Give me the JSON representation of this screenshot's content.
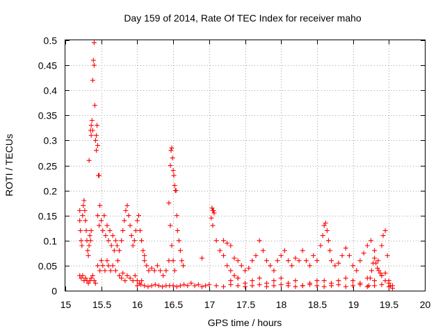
{
  "chart_data": {
    "type": "scatter",
    "title": "Day 159 of 2014, Rate Of TEC Index for receiver maho",
    "xlabel": "GPS time / hours",
    "ylabel": "ROTI / TECUs",
    "xlim": [
      15,
      20
    ],
    "ylim": [
      0,
      0.5
    ],
    "xticks": [
      15,
      15.5,
      16,
      16.5,
      17,
      17.5,
      18,
      18.5,
      19,
      19.5,
      20
    ],
    "xtick_labels": [
      "15",
      "15.5",
      "16",
      "16.5",
      "17",
      "17.5",
      "18",
      "18.5",
      "19",
      "19.5",
      "20"
    ],
    "yticks": [
      0,
      0.05,
      0.1,
      0.15,
      0.2,
      0.25,
      0.3,
      0.35,
      0.4,
      0.45,
      0.5
    ],
    "ytick_labels": [
      "0",
      "0.05",
      "0.1",
      "0.15",
      "0.2",
      "0.25",
      "0.3",
      "0.35",
      "0.4",
      "0.45",
      "0.5"
    ],
    "grid": true,
    "marker": "+",
    "color": "#ff0000",
    "series": [
      {
        "name": "ROTI",
        "points": [
          [
            15.2,
            0.16
          ],
          [
            15.2,
            0.14
          ],
          [
            15.21,
            0.12
          ],
          [
            15.22,
            0.1
          ],
          [
            15.23,
            0.09
          ],
          [
            15.24,
            0.15
          ],
          [
            15.25,
            0.17
          ],
          [
            15.26,
            0.18
          ],
          [
            15.27,
            0.16
          ],
          [
            15.28,
            0.14
          ],
          [
            15.29,
            0.12
          ],
          [
            15.3,
            0.1
          ],
          [
            15.31,
            0.08
          ],
          [
            15.32,
            0.07
          ],
          [
            15.33,
            0.09
          ],
          [
            15.34,
            0.11
          ],
          [
            15.35,
            0.1
          ],
          [
            15.36,
            0.12
          ],
          [
            15.2,
            0.03
          ],
          [
            15.22,
            0.025
          ],
          [
            15.24,
            0.03
          ],
          [
            15.26,
            0.02
          ],
          [
            15.28,
            0.025
          ],
          [
            15.3,
            0.02
          ],
          [
            15.32,
            0.015
          ],
          [
            15.34,
            0.02
          ],
          [
            15.36,
            0.025
          ],
          [
            15.38,
            0.03
          ],
          [
            15.4,
            0.02
          ],
          [
            15.42,
            0.015
          ],
          [
            15.33,
            0.26
          ],
          [
            15.35,
            0.32
          ],
          [
            15.36,
            0.33
          ],
          [
            15.37,
            0.34
          ],
          [
            15.38,
            0.42
          ],
          [
            15.39,
            0.46
          ],
          [
            15.4,
            0.45
          ],
          [
            15.41,
            0.37
          ],
          [
            15.42,
            0.3
          ],
          [
            15.43,
            0.31
          ],
          [
            15.44,
            0.33
          ],
          [
            15.45,
            0.29
          ],
          [
            15.4,
            0.495
          ],
          [
            15.46,
            0.23
          ],
          [
            15.47,
            0.23
          ],
          [
            15.38,
            0.32
          ],
          [
            15.36,
            0.31
          ],
          [
            15.43,
            0.28
          ],
          [
            15.45,
            0.15
          ],
          [
            15.47,
            0.13
          ],
          [
            15.48,
            0.17
          ],
          [
            15.5,
            0.14
          ],
          [
            15.52,
            0.12
          ],
          [
            15.54,
            0.15
          ],
          [
            15.56,
            0.11
          ],
          [
            15.58,
            0.13
          ],
          [
            15.6,
            0.1
          ],
          [
            15.62,
            0.12
          ],
          [
            15.64,
            0.09
          ],
          [
            15.66,
            0.11
          ],
          [
            15.68,
            0.08
          ],
          [
            15.7,
            0.1
          ],
          [
            15.72,
            0.09
          ],
          [
            15.45,
            0.05
          ],
          [
            15.48,
            0.04
          ],
          [
            15.5,
            0.06
          ],
          [
            15.52,
            0.05
          ],
          [
            15.55,
            0.04
          ],
          [
            15.58,
            0.06
          ],
          [
            15.6,
            0.05
          ],
          [
            15.63,
            0.04
          ],
          [
            15.66,
            0.05
          ],
          [
            15.7,
            0.04
          ],
          [
            15.73,
            0.06
          ],
          [
            15.75,
            0.08
          ],
          [
            15.78,
            0.1
          ],
          [
            15.8,
            0.12
          ],
          [
            15.82,
            0.14
          ],
          [
            15.84,
            0.16
          ],
          [
            15.86,
            0.17
          ],
          [
            15.88,
            0.15
          ],
          [
            15.9,
            0.13
          ],
          [
            15.92,
            0.11
          ],
          [
            15.94,
            0.09
          ],
          [
            15.96,
            0.1
          ],
          [
            15.98,
            0.12
          ],
          [
            16.0,
            0.14
          ],
          [
            16.02,
            0.15
          ],
          [
            16.04,
            0.12
          ],
          [
            16.06,
            0.1
          ],
          [
            16.08,
            0.08
          ],
          [
            16.1,
            0.07
          ],
          [
            15.75,
            0.03
          ],
          [
            15.78,
            0.025
          ],
          [
            15.8,
            0.035
          ],
          [
            15.83,
            0.02
          ],
          [
            15.86,
            0.03
          ],
          [
            15.9,
            0.025
          ],
          [
            15.94,
            0.02
          ],
          [
            15.97,
            0.03
          ],
          [
            16.0,
            0.02
          ],
          [
            16.03,
            0.015
          ],
          [
            16.06,
            0.02
          ],
          [
            16.1,
            0.06
          ],
          [
            16.13,
            0.05
          ],
          [
            16.16,
            0.04
          ],
          [
            16.2,
            0.045
          ],
          [
            16.24,
            0.04
          ],
          [
            16.28,
            0.05
          ],
          [
            16.32,
            0.04
          ],
          [
            16.36,
            0.03
          ],
          [
            16.4,
            0.04
          ],
          [
            16.44,
            0.06
          ],
          [
            16.0,
            0.01
          ],
          [
            16.05,
            0.012
          ],
          [
            16.1,
            0.01
          ],
          [
            16.15,
            0.008
          ],
          [
            16.2,
            0.01
          ],
          [
            16.25,
            0.012
          ],
          [
            16.3,
            0.01
          ],
          [
            16.35,
            0.008
          ],
          [
            16.4,
            0.01
          ],
          [
            16.45,
            0.01
          ],
          [
            16.44,
            0.175
          ],
          [
            16.46,
            0.25
          ],
          [
            16.47,
            0.28
          ],
          [
            16.48,
            0.285
          ],
          [
            16.49,
            0.265
          ],
          [
            16.5,
            0.24
          ],
          [
            16.51,
            0.23
          ],
          [
            16.52,
            0.21
          ],
          [
            16.53,
            0.2
          ],
          [
            16.54,
            0.2
          ],
          [
            16.55,
            0.15
          ],
          [
            16.56,
            0.12
          ],
          [
            16.58,
            0.1
          ],
          [
            16.6,
            0.08
          ],
          [
            16.62,
            0.06
          ],
          [
            16.64,
            0.05
          ],
          [
            16.46,
            0.13
          ],
          [
            16.48,
            0.09
          ],
          [
            16.5,
            0.06
          ],
          [
            16.52,
            0.04
          ],
          [
            16.5,
            0.01
          ],
          [
            16.55,
            0.008
          ],
          [
            16.6,
            0.01
          ],
          [
            16.65,
            0.012
          ],
          [
            16.7,
            0.01
          ],
          [
            16.75,
            0.015
          ],
          [
            16.8,
            0.01
          ],
          [
            16.85,
            0.012
          ],
          [
            16.9,
            0.008
          ],
          [
            16.95,
            0.01
          ],
          [
            17.0,
            0.012
          ],
          [
            16.9,
            0.065
          ],
          [
            17.03,
            0.145
          ],
          [
            17.04,
            0.165
          ],
          [
            17.05,
            0.16
          ],
          [
            17.06,
            0.16
          ],
          [
            17.07,
            0.155
          ],
          [
            17.05,
            0.13
          ],
          [
            17.1,
            0.1
          ],
          [
            17.15,
            0.08
          ],
          [
            17.2,
            0.07
          ],
          [
            17.25,
            0.05
          ],
          [
            17.3,
            0.04
          ],
          [
            17.35,
            0.03
          ],
          [
            17.4,
            0.025
          ],
          [
            17.2,
            0.1
          ],
          [
            17.25,
            0.095
          ],
          [
            17.3,
            0.09
          ],
          [
            17.35,
            0.065
          ],
          [
            17.4,
            0.06
          ],
          [
            17.45,
            0.05
          ],
          [
            17.5,
            0.04
          ],
          [
            17.55,
            0.045
          ],
          [
            17.6,
            0.06
          ],
          [
            17.65,
            0.07
          ],
          [
            17.7,
            0.1
          ],
          [
            17.75,
            0.08
          ],
          [
            17.8,
            0.06
          ],
          [
            17.85,
            0.05
          ],
          [
            17.9,
            0.04
          ],
          [
            17.95,
            0.06
          ],
          [
            18.0,
            0.07
          ],
          [
            18.05,
            0.08
          ],
          [
            18.1,
            0.06
          ],
          [
            18.15,
            0.05
          ],
          [
            18.2,
            0.065
          ],
          [
            18.25,
            0.06
          ],
          [
            18.3,
            0.08
          ],
          [
            18.35,
            0.06
          ],
          [
            18.4,
            0.05
          ],
          [
            18.45,
            0.07
          ],
          [
            18.5,
            0.06
          ],
          [
            17.3,
            0.02
          ],
          [
            17.4,
            0.025
          ],
          [
            17.5,
            0.015
          ],
          [
            17.6,
            0.02
          ],
          [
            17.7,
            0.025
          ],
          [
            17.8,
            0.015
          ],
          [
            17.9,
            0.02
          ],
          [
            18.0,
            0.025
          ],
          [
            18.1,
            0.015
          ],
          [
            18.2,
            0.02
          ],
          [
            18.3,
            0.01
          ],
          [
            18.4,
            0.015
          ],
          [
            18.5,
            0.02
          ],
          [
            17.1,
            0.01
          ],
          [
            17.2,
            0.008
          ],
          [
            17.3,
            0.012
          ],
          [
            17.4,
            0.01
          ],
          [
            17.5,
            0.008
          ],
          [
            17.6,
            0.01
          ],
          [
            17.7,
            0.012
          ],
          [
            17.8,
            0.008
          ],
          [
            17.9,
            0.01
          ],
          [
            18.0,
            0.012
          ],
          [
            18.1,
            0.01
          ],
          [
            18.2,
            0.008
          ],
          [
            18.3,
            0.01
          ],
          [
            18.4,
            0.012
          ],
          [
            18.5,
            0.01
          ],
          [
            18.55,
            0.09
          ],
          [
            18.58,
            0.11
          ],
          [
            18.6,
            0.13
          ],
          [
            18.62,
            0.135
          ],
          [
            18.64,
            0.12
          ],
          [
            18.66,
            0.1
          ],
          [
            18.68,
            0.08
          ],
          [
            18.7,
            0.06
          ],
          [
            18.75,
            0.05
          ],
          [
            18.8,
            0.055
          ],
          [
            18.85,
            0.07
          ],
          [
            18.9,
            0.085
          ],
          [
            18.95,
            0.07
          ],
          [
            19.0,
            0.05
          ],
          [
            19.05,
            0.04
          ],
          [
            19.1,
            0.06
          ],
          [
            19.15,
            0.075
          ],
          [
            19.2,
            0.09
          ],
          [
            19.25,
            0.1
          ],
          [
            19.3,
            0.08
          ],
          [
            19.35,
            0.06
          ],
          [
            19.4,
            0.09
          ],
          [
            19.42,
            0.11
          ],
          [
            19.45,
            0.12
          ],
          [
            19.48,
            0.07
          ],
          [
            18.6,
            0.02
          ],
          [
            18.7,
            0.015
          ],
          [
            18.8,
            0.02
          ],
          [
            18.9,
            0.025
          ],
          [
            19.0,
            0.02
          ],
          [
            19.1,
            0.015
          ],
          [
            19.2,
            0.025
          ],
          [
            19.3,
            0.02
          ],
          [
            19.4,
            0.03
          ],
          [
            19.45,
            0.035
          ],
          [
            19.5,
            0.02
          ],
          [
            18.6,
            0.008
          ],
          [
            18.7,
            0.01
          ],
          [
            18.8,
            0.012
          ],
          [
            18.9,
            0.008
          ],
          [
            19.0,
            0.01
          ],
          [
            19.1,
            0.012
          ],
          [
            19.2,
            0.008
          ],
          [
            19.3,
            0.01
          ],
          [
            19.4,
            0.012
          ],
          [
            19.5,
            0.008
          ],
          [
            19.55,
            0.01
          ],
          [
            19.22,
            0.01
          ],
          [
            19.24,
            0.025
          ],
          [
            19.26,
            0.04
          ],
          [
            19.28,
            0.055
          ],
          [
            19.3,
            0.065
          ],
          [
            19.32,
            0.055
          ],
          [
            19.34,
            0.045
          ],
          [
            19.36,
            0.04
          ],
          [
            19.38,
            0.035
          ],
          [
            19.4,
            0.03
          ],
          [
            19.45,
            0.02
          ],
          [
            19.5,
            0.015
          ],
          [
            19.52,
            0.01
          ],
          [
            19.55,
            0.005
          ]
        ]
      }
    ]
  }
}
